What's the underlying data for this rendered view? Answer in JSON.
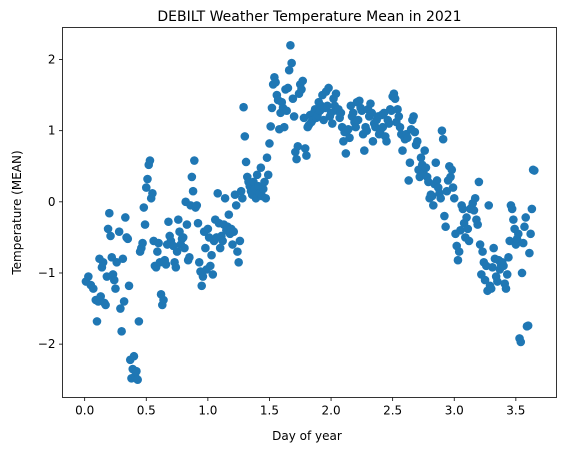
{
  "chart_data": {
    "type": "scatter",
    "title": "DEBILT Weather Temperature Mean in 2021",
    "xlabel": "Day of year",
    "ylabel": "Temperature (MEAN)",
    "xlim": [
      -0.18,
      3.83
    ],
    "ylim": [
      -2.75,
      2.45
    ],
    "xticks": [
      0.0,
      0.5,
      1.0,
      1.5,
      2.0,
      2.5,
      3.0,
      3.5
    ],
    "xtick_labels": [
      "0.0",
      "0.5",
      "1.0",
      "1.5",
      "2.0",
      "2.5",
      "3.0",
      "3.5"
    ],
    "yticks": [
      -2,
      -1,
      0,
      1,
      2
    ],
    "ytick_labels": [
      "−2",
      "−1",
      "0",
      "1",
      "2"
    ],
    "grid": false,
    "color": "#1f77b4",
    "points": [
      [
        0.01,
        -1.12
      ],
      [
        0.03,
        -1.05
      ],
      [
        0.05,
        -1.17
      ],
      [
        0.07,
        -1.22
      ],
      [
        0.09,
        -1.38
      ],
      [
        0.1,
        -1.68
      ],
      [
        0.11,
        -1.4
      ],
      [
        0.12,
        -0.8
      ],
      [
        0.13,
        -1.33
      ],
      [
        0.14,
        -0.92
      ],
      [
        0.15,
        -0.85
      ],
      [
        0.16,
        -1.42
      ],
      [
        0.17,
        -1.45
      ],
      [
        0.18,
        -1.05
      ],
      [
        0.19,
        -0.38
      ],
      [
        0.2,
        -0.16
      ],
      [
        0.21,
        -0.48
      ],
      [
        0.22,
        -0.78
      ],
      [
        0.23,
        -1.02
      ],
      [
        0.24,
        -1.1
      ],
      [
        0.25,
        -1.22
      ],
      [
        0.26,
        -0.85
      ],
      [
        0.28,
        -0.42
      ],
      [
        0.29,
        -1.5
      ],
      [
        0.3,
        -1.82
      ],
      [
        0.31,
        -0.8
      ],
      [
        0.32,
        -1.4
      ],
      [
        0.33,
        -0.22
      ],
      [
        0.34,
        -0.5
      ],
      [
        0.35,
        -0.52
      ],
      [
        0.36,
        -1.18
      ],
      [
        0.37,
        -2.22
      ],
      [
        0.38,
        -2.48
      ],
      [
        0.39,
        -2.35
      ],
      [
        0.4,
        -2.17
      ],
      [
        0.41,
        -2.45
      ],
      [
        0.42,
        -2.38
      ],
      [
        0.43,
        -2.5
      ],
      [
        0.44,
        -1.68
      ],
      [
        0.45,
        -0.7
      ],
      [
        0.46,
        -0.65
      ],
      [
        0.47,
        -0.58
      ],
      [
        0.48,
        -0.08
      ],
      [
        0.49,
        -0.32
      ],
      [
        0.5,
        0.2
      ],
      [
        0.51,
        0.32
      ],
      [
        0.52,
        0.52
      ],
      [
        0.53,
        0.58
      ],
      [
        0.54,
        0.05
      ],
      [
        0.55,
        0.12
      ],
      [
        0.56,
        -0.55
      ],
      [
        0.57,
        -0.9
      ],
      [
        0.58,
        -0.92
      ],
      [
        0.59,
        -0.7
      ],
      [
        0.6,
        -0.58
      ],
      [
        0.61,
        -0.85
      ],
      [
        0.62,
        -1.3
      ],
      [
        0.63,
        -1.45
      ],
      [
        0.64,
        -1.38
      ],
      [
        0.65,
        -0.82
      ],
      [
        0.66,
        -0.88
      ],
      [
        0.67,
        -0.6
      ],
      [
        0.68,
        -0.28
      ],
      [
        0.69,
        -0.48
      ],
      [
        0.7,
        -0.55
      ],
      [
        0.72,
        -0.62
      ],
      [
        0.73,
        -0.85
      ],
      [
        0.74,
        -0.92
      ],
      [
        0.75,
        -0.7
      ],
      [
        0.76,
        -0.25
      ],
      [
        0.77,
        -0.42
      ],
      [
        0.78,
        -0.6
      ],
      [
        0.79,
        -0.52
      ],
      [
        0.8,
        -0.5
      ],
      [
        0.81,
        -0.65
      ],
      [
        0.82,
        0.0
      ],
      [
        0.83,
        -0.32
      ],
      [
        0.84,
        -0.82
      ],
      [
        0.85,
        -0.78
      ],
      [
        0.86,
        -0.05
      ],
      [
        0.87,
        0.35
      ],
      [
        0.88,
        0.15
      ],
      [
        0.89,
        0.58
      ],
      [
        0.9,
        -0.08
      ],
      [
        0.91,
        -0.05
      ],
      [
        0.92,
        -0.3
      ],
      [
        0.93,
        -0.85
      ],
      [
        0.94,
        -0.98
      ],
      [
        0.95,
        -1.18
      ],
      [
        0.96,
        -1.05
      ],
      [
        0.97,
        -0.42
      ],
      [
        0.98,
        -0.65
      ],
      [
        0.99,
        -0.95
      ],
      [
        1.0,
        -0.38
      ],
      [
        1.01,
        -0.5
      ],
      [
        1.02,
        -0.9
      ],
      [
        1.03,
        -0.75
      ],
      [
        1.04,
        -1.02
      ],
      [
        1.05,
        -0.55
      ],
      [
        1.06,
        -0.25
      ],
      [
        1.07,
        -0.5
      ],
      [
        1.08,
        0.12
      ],
      [
        1.09,
        -0.3
      ],
      [
        1.1,
        -0.65
      ],
      [
        1.11,
        -0.48
      ],
      [
        1.12,
        -0.55
      ],
      [
        1.13,
        -0.32
      ],
      [
        1.14,
        0.05
      ],
      [
        1.15,
        -0.4
      ],
      [
        1.16,
        -0.35
      ],
      [
        1.17,
        -0.18
      ],
      [
        1.18,
        -0.45
      ],
      [
        1.19,
        -0.38
      ],
      [
        1.2,
        -0.6
      ],
      [
        1.21,
        -0.42
      ],
      [
        1.22,
        0.1
      ],
      [
        1.23,
        -0.05
      ],
      [
        1.24,
        -0.7
      ],
      [
        1.25,
        -0.85
      ],
      [
        1.26,
        -0.55
      ],
      [
        1.27,
        0.15
      ],
      [
        1.28,
        0.05
      ],
      [
        1.29,
        1.33
      ],
      [
        1.3,
        0.92
      ],
      [
        1.31,
        0.56
      ],
      [
        1.32,
        0.35
      ],
      [
        1.33,
        0.28
      ],
      [
        1.34,
        0.22
      ],
      [
        1.35,
        0.15
      ],
      [
        1.36,
        0.1
      ],
      [
        1.37,
        0.28
      ],
      [
        1.38,
        0.18
      ],
      [
        1.39,
        0.05
      ],
      [
        1.4,
        0.38
      ],
      [
        1.41,
        0.22
      ],
      [
        1.42,
        0.12
      ],
      [
        1.43,
        0.48
      ],
      [
        1.44,
        0.08
      ],
      [
        1.45,
        0.18
      ],
      [
        1.46,
        0.28
      ],
      [
        1.47,
        0.05
      ],
      [
        1.48,
        0.62
      ],
      [
        1.49,
        0.38
      ],
      [
        1.5,
        0.82
      ],
      [
        1.51,
        1.06
      ],
      [
        1.52,
        1.32
      ],
      [
        1.53,
        1.65
      ],
      [
        1.54,
        1.75
      ],
      [
        1.55,
        1.68
      ],
      [
        1.56,
        1.5
      ],
      [
        1.57,
        1.43
      ],
      [
        1.58,
        1.02
      ],
      [
        1.59,
        1.25
      ],
      [
        1.6,
        1.4
      ],
      [
        1.61,
        1.32
      ],
      [
        1.62,
        1.05
      ],
      [
        1.63,
        1.58
      ],
      [
        1.64,
        1.28
      ],
      [
        1.65,
        1.6
      ],
      [
        1.66,
        1.85
      ],
      [
        1.67,
        2.2
      ],
      [
        1.68,
        1.95
      ],
      [
        1.69,
        1.45
      ],
      [
        1.7,
        1.2
      ],
      [
        1.71,
        0.7
      ],
      [
        1.72,
        0.6
      ],
      [
        1.73,
        0.78
      ],
      [
        1.74,
        1.52
      ],
      [
        1.75,
        1.65
      ],
      [
        1.76,
        1.58
      ],
      [
        1.77,
        1.7
      ],
      [
        1.78,
        1.18
      ],
      [
        1.79,
        0.75
      ],
      [
        1.8,
        0.65
      ],
      [
        1.81,
        1.05
      ],
      [
        1.82,
        1.08
      ],
      [
        1.83,
        1.22
      ],
      [
        1.84,
        1.12
      ],
      [
        1.85,
        1.15
      ],
      [
        1.86,
        1.25
      ],
      [
        1.87,
        1.3
      ],
      [
        1.88,
        1.18
      ],
      [
        1.89,
        1.22
      ],
      [
        1.9,
        1.4
      ],
      [
        1.91,
        1.28
      ],
      [
        1.92,
        1.35
      ],
      [
        1.93,
        1.5
      ],
      [
        1.94,
        1.15
      ],
      [
        1.95,
        1.32
      ],
      [
        1.96,
        1.55
      ],
      [
        1.97,
        1.35
      ],
      [
        1.98,
        1.6
      ],
      [
        1.99,
        1.2
      ],
      [
        2.0,
        1.25
      ],
      [
        2.01,
        1.1
      ],
      [
        2.02,
        1.45
      ],
      [
        2.03,
        1.35
      ],
      [
        2.04,
        1.52
      ],
      [
        2.05,
        1.28
      ],
      [
        2.06,
        1.3
      ],
      [
        2.07,
        1.18
      ],
      [
        2.08,
        1.25
      ],
      [
        2.09,
        1.05
      ],
      [
        2.1,
        0.85
      ],
      [
        2.11,
        0.98
      ],
      [
        2.12,
        0.68
      ],
      [
        2.13,
        1.0
      ],
      [
        2.14,
        1.02
      ],
      [
        2.15,
        0.9
      ],
      [
        2.16,
        1.35
      ],
      [
        2.17,
        1.2
      ],
      [
        2.18,
        1.25
      ],
      [
        2.19,
        1.12
      ],
      [
        2.2,
        1.05
      ],
      [
        2.21,
        1.4
      ],
      [
        2.22,
        1.15
      ],
      [
        2.23,
        1.42
      ],
      [
        2.24,
        1.32
      ],
      [
        2.25,
        1.28
      ],
      [
        2.26,
        0.95
      ],
      [
        2.27,
        0.72
      ],
      [
        2.28,
        1.05
      ],
      [
        2.29,
        1.0
      ],
      [
        2.3,
        1.3
      ],
      [
        2.31,
        1.2
      ],
      [
        2.32,
        1.38
      ],
      [
        2.33,
        1.25
      ],
      [
        2.34,
        0.85
      ],
      [
        2.35,
        1.1
      ],
      [
        2.36,
        1.05
      ],
      [
        2.37,
        1.15
      ],
      [
        2.38,
        1.2
      ],
      [
        2.39,
        0.95
      ],
      [
        2.4,
        1.0
      ],
      [
        2.41,
        1.22
      ],
      [
        2.42,
        1.05
      ],
      [
        2.43,
        1.25
      ],
      [
        2.44,
        0.92
      ],
      [
        2.45,
        0.85
      ],
      [
        2.46,
        1.15
      ],
      [
        2.47,
        1.1
      ],
      [
        2.48,
        1.3
      ],
      [
        2.49,
        1.28
      ],
      [
        2.5,
        1.48
      ],
      [
        2.51,
        1.52
      ],
      [
        2.52,
        1.45
      ],
      [
        2.53,
        1.12
      ],
      [
        2.54,
        1.3
      ],
      [
        2.55,
        1.2
      ],
      [
        2.56,
        1.05
      ],
      [
        2.57,
        0.95
      ],
      [
        2.58,
        0.72
      ],
      [
        2.59,
        0.92
      ],
      [
        2.6,
        0.88
      ],
      [
        2.61,
        0.95
      ],
      [
        2.62,
        0.9
      ],
      [
        2.63,
        0.3
      ],
      [
        2.64,
        0.55
      ],
      [
        2.65,
        1.02
      ],
      [
        2.66,
        1.15
      ],
      [
        2.67,
        1.2
      ],
      [
        2.68,
        0.98
      ],
      [
        2.69,
        0.8
      ],
      [
        2.7,
        0.85
      ],
      [
        2.71,
        0.45
      ],
      [
        2.72,
        0.35
      ],
      [
        2.73,
        0.62
      ],
      [
        2.74,
        0.52
      ],
      [
        2.75,
        0.4
      ],
      [
        2.76,
        0.72
      ],
      [
        2.77,
        0.48
      ],
      [
        2.78,
        0.35
      ],
      [
        2.79,
        0.28
      ],
      [
        2.8,
        0.05
      ],
      [
        2.81,
        0.1
      ],
      [
        2.82,
        0.08
      ],
      [
        2.83,
        -0.05
      ],
      [
        2.84,
        0.25
      ],
      [
        2.85,
        0.55
      ],
      [
        2.86,
        0.3
      ],
      [
        2.87,
        0.2
      ],
      [
        2.88,
        0.12
      ],
      [
        2.89,
        0.05
      ],
      [
        2.9,
        1.0
      ],
      [
        2.91,
        0.88
      ],
      [
        2.92,
        -0.2
      ],
      [
        2.93,
        -0.35
      ],
      [
        2.94,
        0.15
      ],
      [
        2.95,
        0.3
      ],
      [
        2.96,
        0.5
      ],
      [
        2.97,
        0.35
      ],
      [
        2.98,
        0.45
      ],
      [
        2.99,
        0.2
      ],
      [
        3.0,
        0.05
      ],
      [
        3.01,
        -0.45
      ],
      [
        3.02,
        -0.62
      ],
      [
        3.03,
        -0.82
      ],
      [
        3.04,
        -0.7
      ],
      [
        3.05,
        -0.4
      ],
      [
        3.06,
        -0.05
      ],
      [
        3.07,
        -0.1
      ],
      [
        3.08,
        -0.3
      ],
      [
        3.09,
        -0.5
      ],
      [
        3.1,
        -0.22
      ],
      [
        3.11,
        -0.38
      ],
      [
        3.12,
        -0.55
      ],
      [
        3.13,
        -0.1
      ],
      [
        3.14,
        -0.08
      ],
      [
        3.15,
        -0.02
      ],
      [
        3.16,
        -0.12
      ],
      [
        3.17,
        0.05
      ],
      [
        3.18,
        -0.25
      ],
      [
        3.19,
        -0.32
      ],
      [
        3.2,
        0.28
      ],
      [
        3.21,
        -0.6
      ],
      [
        3.22,
        -1.02
      ],
      [
        3.23,
        -0.7
      ],
      [
        3.24,
        -0.85
      ],
      [
        3.25,
        -1.1
      ],
      [
        3.26,
        -0.9
      ],
      [
        3.27,
        -1.25
      ],
      [
        3.28,
        -0.05
      ],
      [
        3.29,
        -1.18
      ],
      [
        3.3,
        -1.22
      ],
      [
        3.31,
        -0.92
      ],
      [
        3.32,
        -0.65
      ],
      [
        3.33,
        -0.8
      ],
      [
        3.34,
        -1.05
      ],
      [
        3.35,
        -1.12
      ],
      [
        3.36,
        -0.82
      ],
      [
        3.37,
        -0.95
      ],
      [
        3.38,
        -0.88
      ],
      [
        3.39,
        -0.85
      ],
      [
        3.4,
        -0.9
      ],
      [
        3.41,
        -1.15
      ],
      [
        3.42,
        -1.22
      ],
      [
        3.43,
        -1.02
      ],
      [
        3.44,
        -0.78
      ],
      [
        3.45,
        -0.55
      ],
      [
        3.46,
        -0.05
      ],
      [
        3.47,
        -0.1
      ],
      [
        3.48,
        -0.25
      ],
      [
        3.49,
        -0.38
      ],
      [
        3.5,
        -0.6
      ],
      [
        3.51,
        -0.52
      ],
      [
        3.52,
        -0.45
      ],
      [
        3.53,
        -1.92
      ],
      [
        3.54,
        -1.97
      ],
      [
        3.55,
        -1.0
      ],
      [
        3.56,
        -0.58
      ],
      [
        3.57,
        -0.35
      ],
      [
        3.58,
        -0.22
      ],
      [
        3.59,
        -1.75
      ],
      [
        3.6,
        -1.74
      ],
      [
        3.61,
        -0.72
      ],
      [
        3.62,
        -0.45
      ],
      [
        3.63,
        -0.1
      ],
      [
        3.64,
        0.45
      ],
      [
        3.65,
        0.44
      ]
    ]
  }
}
